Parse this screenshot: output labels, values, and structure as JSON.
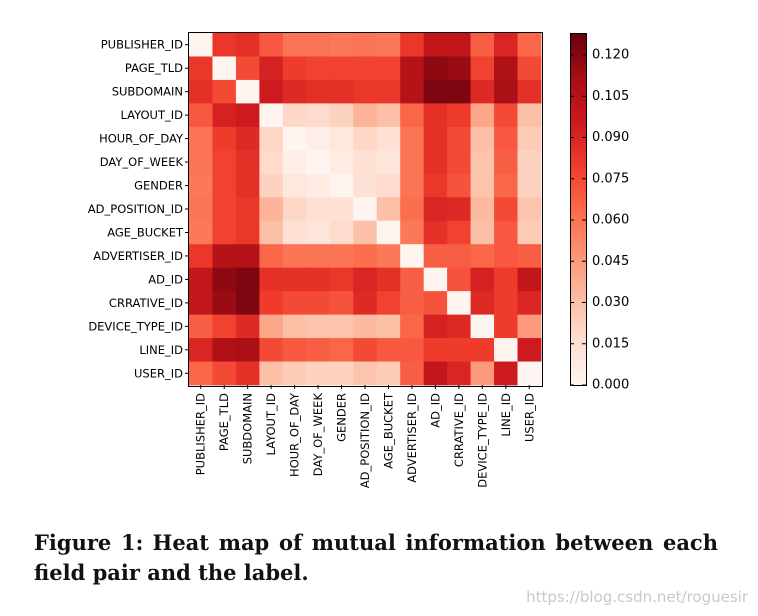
{
  "figure": {
    "label": "Figure 1:",
    "caption": "Heat map of mutual information between each field pair and the label."
  },
  "watermark": "https://blog.csdn.net/roguesir",
  "chart_data": {
    "type": "heatmap",
    "title": "",
    "xlabel": "",
    "ylabel": "",
    "row_labels": [
      "PUBLISHER_ID",
      "PAGE_TLD",
      "SUBDOMAIN",
      "LAYOUT_ID",
      "HOUR_OF_DAY",
      "DAY_OF_WEEK",
      "GENDER",
      "AD_POSITION_ID",
      "AGE_BUCKET",
      "ADVERTISER_ID",
      "AD_ID",
      "CRRATIVE_ID",
      "DEVICE_TYPE_ID",
      "LINE_ID",
      "USER_ID"
    ],
    "col_labels": [
      "PUBLISHER_ID",
      "PAGE_TLD",
      "SUBDOMAIN",
      "LAYOUT_ID",
      "HOUR_OF_DAY",
      "DAY_OF_WEEK",
      "GENDER",
      "AD_POSITION_ID",
      "AGE_BUCKET",
      "ADVERTISER_ID",
      "AD_ID",
      "CRRATIVE_ID",
      "DEVICE_TYPE_ID",
      "LINE_ID",
      "USER_ID"
    ],
    "values": [
      [
        0.0,
        0.082,
        0.085,
        0.07,
        0.06,
        0.06,
        0.058,
        0.06,
        0.058,
        0.082,
        0.1,
        0.1,
        0.068,
        0.09,
        0.065
      ],
      [
        0.082,
        0.0,
        0.075,
        0.092,
        0.08,
        0.078,
        0.078,
        0.078,
        0.078,
        0.105,
        0.118,
        0.115,
        0.078,
        0.108,
        0.075
      ],
      [
        0.085,
        0.075,
        0.0,
        0.095,
        0.088,
        0.085,
        0.085,
        0.082,
        0.082,
        0.105,
        0.122,
        0.122,
        0.088,
        0.11,
        0.085
      ],
      [
        0.07,
        0.092,
        0.095,
        0.0,
        0.02,
        0.018,
        0.022,
        0.035,
        0.03,
        0.065,
        0.085,
        0.08,
        0.04,
        0.075,
        0.03
      ],
      [
        0.06,
        0.08,
        0.088,
        0.02,
        0.0,
        0.005,
        0.01,
        0.02,
        0.015,
        0.06,
        0.085,
        0.075,
        0.03,
        0.07,
        0.025
      ],
      [
        0.06,
        0.078,
        0.085,
        0.018,
        0.005,
        0.0,
        0.008,
        0.015,
        0.012,
        0.06,
        0.085,
        0.075,
        0.028,
        0.068,
        0.022
      ],
      [
        0.058,
        0.078,
        0.085,
        0.022,
        0.01,
        0.008,
        0.0,
        0.015,
        0.018,
        0.06,
        0.082,
        0.072,
        0.028,
        0.065,
        0.022
      ],
      [
        0.06,
        0.078,
        0.082,
        0.035,
        0.02,
        0.015,
        0.015,
        0.0,
        0.03,
        0.062,
        0.09,
        0.088,
        0.032,
        0.075,
        0.028
      ],
      [
        0.058,
        0.078,
        0.082,
        0.03,
        0.015,
        0.012,
        0.018,
        0.03,
        0.0,
        0.058,
        0.085,
        0.078,
        0.03,
        0.07,
        0.025
      ],
      [
        0.082,
        0.105,
        0.105,
        0.065,
        0.06,
        0.06,
        0.06,
        0.062,
        0.058,
        0.0,
        0.068,
        0.068,
        0.065,
        0.07,
        0.068
      ],
      [
        0.1,
        0.118,
        0.122,
        0.085,
        0.085,
        0.085,
        0.082,
        0.09,
        0.085,
        0.068,
        0.0,
        0.072,
        0.092,
        0.08,
        0.1
      ],
      [
        0.1,
        0.115,
        0.122,
        0.08,
        0.075,
        0.075,
        0.072,
        0.088,
        0.078,
        0.068,
        0.072,
        0.0,
        0.088,
        0.08,
        0.09
      ],
      [
        0.068,
        0.078,
        0.088,
        0.04,
        0.03,
        0.028,
        0.028,
        0.032,
        0.03,
        0.065,
        0.092,
        0.088,
        0.0,
        0.08,
        0.045
      ],
      [
        0.09,
        0.108,
        0.11,
        0.075,
        0.07,
        0.068,
        0.065,
        0.075,
        0.07,
        0.07,
        0.08,
        0.08,
        0.08,
        0.0,
        0.095
      ],
      [
        0.065,
        0.075,
        0.085,
        0.03,
        0.025,
        0.022,
        0.022,
        0.028,
        0.025,
        0.068,
        0.1,
        0.09,
        0.045,
        0.095,
        0.0
      ]
    ],
    "colorbar": {
      "range": [
        0,
        0.128
      ],
      "tick_values": [
        0.0,
        0.015,
        0.03,
        0.045,
        0.06,
        0.075,
        0.09,
        0.105,
        0.12
      ],
      "tick_labels": [
        "0.000",
        "0.015",
        "0.030",
        "0.045",
        "0.060",
        "0.075",
        "0.090",
        "0.105",
        "0.120"
      ]
    },
    "colors": [
      "#fff5f0",
      "#fee0d2",
      "#fcbba1",
      "#fc9272",
      "#fb6a4a",
      "#ef3b2c",
      "#cb181d",
      "#a50f15",
      "#67000d"
    ]
  }
}
